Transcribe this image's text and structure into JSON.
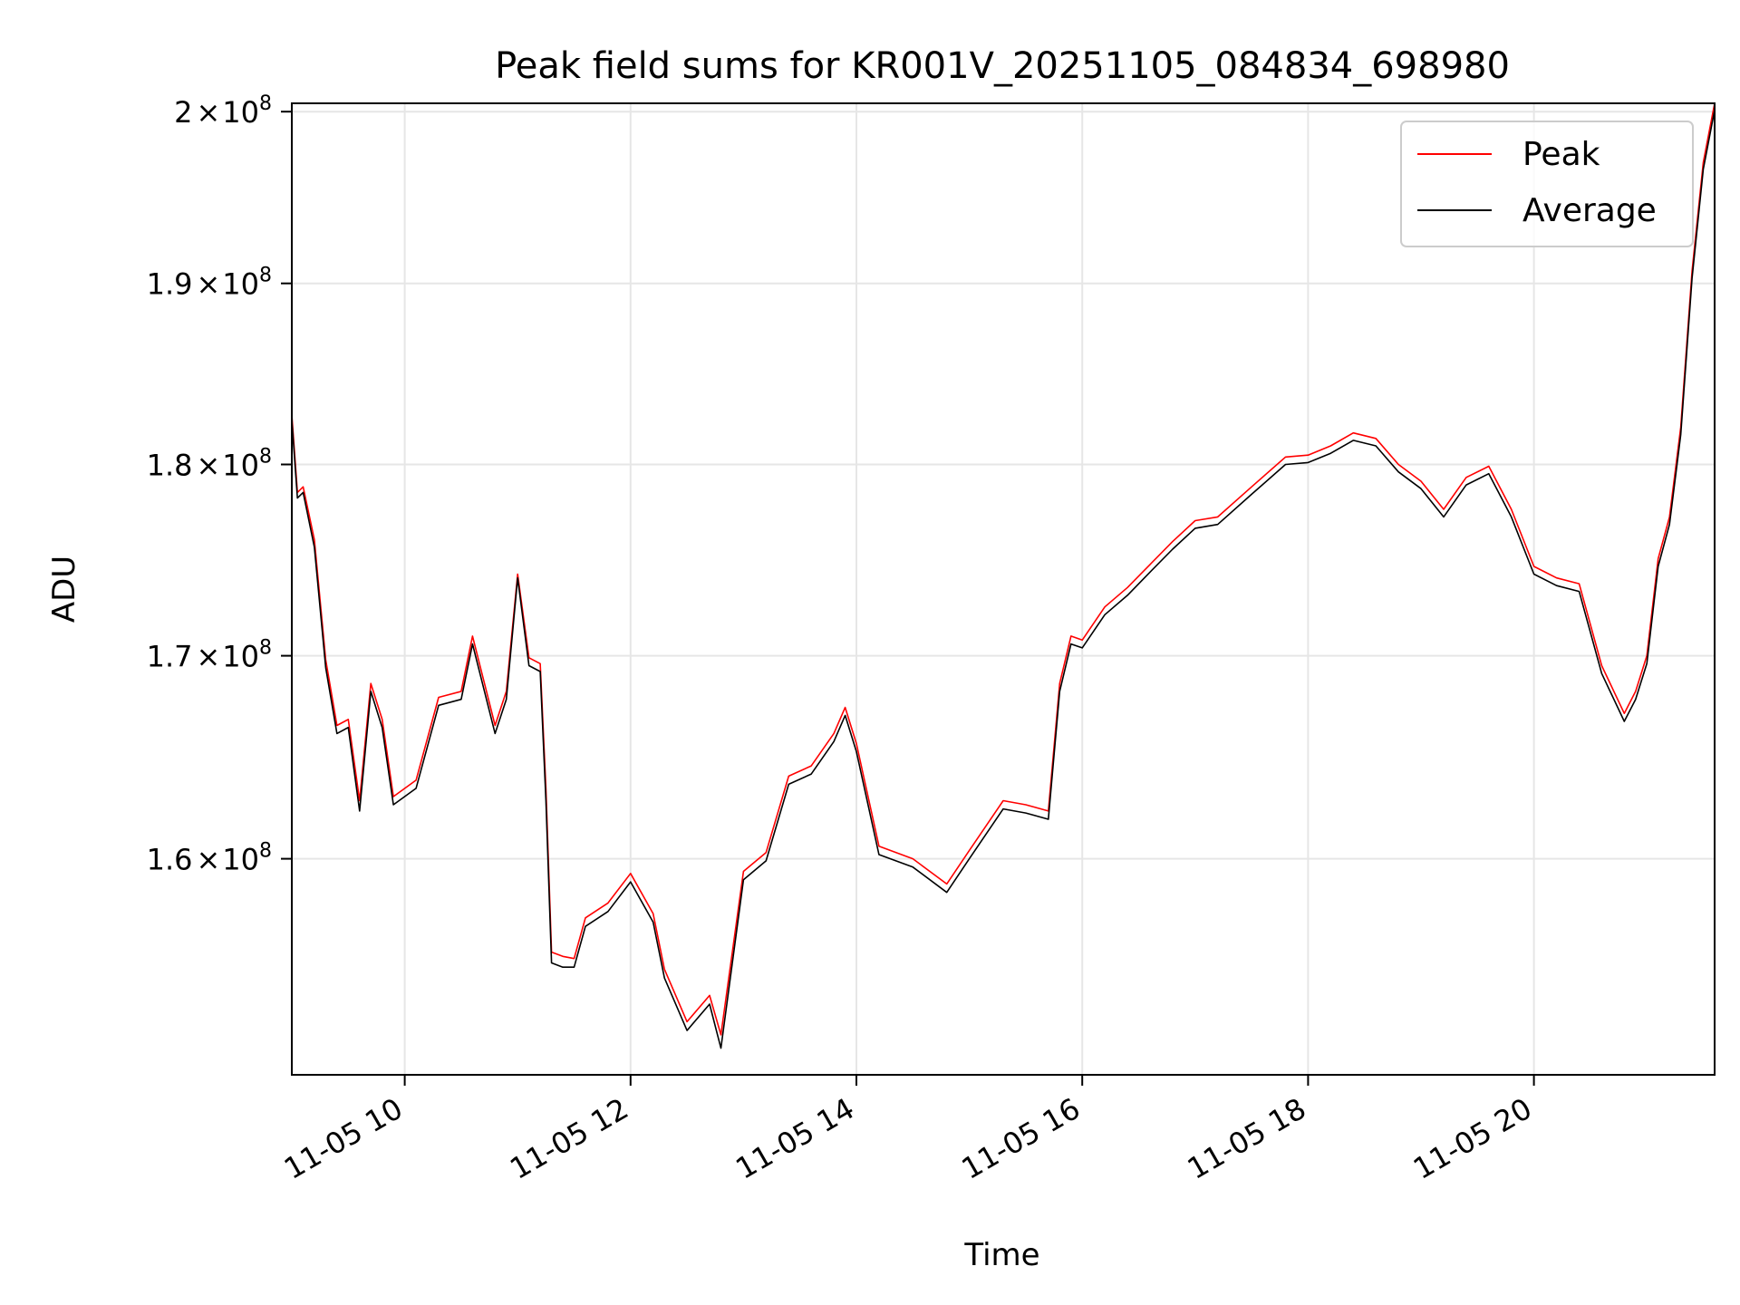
{
  "chart_data": {
    "type": "line",
    "title": "Peak field sums for KR001V_20251105_084834_698980",
    "xlabel": "Time",
    "ylabel": "ADU",
    "x_range": [
      "2025-11-05T09:00",
      "2025-11-05T21:36"
    ],
    "ylim": [
      150000000,
      200500000
    ],
    "y_scale": "log",
    "grid": true,
    "legend_position": "top-right",
    "x_ticks": [
      {
        "x": "2025-11-05T10:00",
        "label": "11-05 10"
      },
      {
        "x": "2025-11-05T12:00",
        "label": "11-05 12"
      },
      {
        "x": "2025-11-05T14:00",
        "label": "11-05 14"
      },
      {
        "x": "2025-11-05T16:00",
        "label": "11-05 16"
      },
      {
        "x": "2025-11-05T18:00",
        "label": "11-05 18"
      },
      {
        "x": "2025-11-05T20:00",
        "label": "11-05 20"
      }
    ],
    "y_ticks": [
      {
        "y": 160000000,
        "mantissa": "1.6",
        "exponent": "8"
      },
      {
        "y": 170000000,
        "mantissa": "1.7",
        "exponent": "8"
      },
      {
        "y": 180000000,
        "mantissa": "1.8",
        "exponent": "8"
      },
      {
        "y": 190000000,
        "mantissa": "1.9",
        "exponent": "8"
      },
      {
        "y": 200000000,
        "mantissa": "2",
        "exponent": "8"
      }
    ],
    "series": [
      {
        "name": "Peak",
        "color": "#ff0000",
        "x": [
          "2025-11-05T09:00",
          "2025-11-05T09:03",
          "2025-11-05T09:06",
          "2025-11-05T09:12",
          "2025-11-05T09:18",
          "2025-11-05T09:24",
          "2025-11-05T09:30",
          "2025-11-05T09:36",
          "2025-11-05T09:42",
          "2025-11-05T09:48",
          "2025-11-05T09:54",
          "2025-11-05T10:06",
          "2025-11-05T10:18",
          "2025-11-05T10:30",
          "2025-11-05T10:36",
          "2025-11-05T10:48",
          "2025-11-05T10:54",
          "2025-11-05T11:00",
          "2025-11-05T11:06",
          "2025-11-05T11:12",
          "2025-11-05T11:15",
          "2025-11-05T11:18",
          "2025-11-05T11:24",
          "2025-11-05T11:30",
          "2025-11-05T11:36",
          "2025-11-05T11:48",
          "2025-11-05T12:00",
          "2025-11-05T12:12",
          "2025-11-05T12:18",
          "2025-11-05T12:30",
          "2025-11-05T12:42",
          "2025-11-05T12:48",
          "2025-11-05T13:00",
          "2025-11-05T13:12",
          "2025-11-05T13:24",
          "2025-11-05T13:36",
          "2025-11-05T13:48",
          "2025-11-05T13:54",
          "2025-11-05T14:00",
          "2025-11-05T14:12",
          "2025-11-05T14:30",
          "2025-11-05T14:48",
          "2025-11-05T15:00",
          "2025-11-05T15:18",
          "2025-11-05T15:30",
          "2025-11-05T15:42",
          "2025-11-05T15:48",
          "2025-11-05T15:54",
          "2025-11-05T16:00",
          "2025-11-05T16:12",
          "2025-11-05T16:24",
          "2025-11-05T16:36",
          "2025-11-05T16:48",
          "2025-11-05T17:00",
          "2025-11-05T17:12",
          "2025-11-05T17:30",
          "2025-11-05T17:48",
          "2025-11-05T18:00",
          "2025-11-05T18:12",
          "2025-11-05T18:24",
          "2025-11-05T18:36",
          "2025-11-05T18:48",
          "2025-11-05T19:00",
          "2025-11-05T19:12",
          "2025-11-05T19:24",
          "2025-11-05T19:36",
          "2025-11-05T19:48",
          "2025-11-05T20:00",
          "2025-11-05T20:12",
          "2025-11-05T20:24",
          "2025-11-05T20:36",
          "2025-11-05T20:48",
          "2025-11-05T20:54",
          "2025-11-05T21:00",
          "2025-11-05T21:06",
          "2025-11-05T21:12",
          "2025-11-05T21:18",
          "2025-11-05T21:24",
          "2025-11-05T21:30",
          "2025-11-05T21:36"
        ],
        "values": [
          182700000,
          178500000,
          178800000,
          176000000,
          169800000,
          166500000,
          166800000,
          162800000,
          168600000,
          166800000,
          163000000,
          163800000,
          167900000,
          168200000,
          171000000,
          166500000,
          168200000,
          174200000,
          169900000,
          169600000,
          163400000,
          155600000,
          155400000,
          155300000,
          157200000,
          157900000,
          159300000,
          157400000,
          154800000,
          152400000,
          153600000,
          151800000,
          159400000,
          160300000,
          164000000,
          164500000,
          166100000,
          167400000,
          165600000,
          160600000,
          160000000,
          158800000,
          160400000,
          162800000,
          162600000,
          162300000,
          168600000,
          171000000,
          170800000,
          172500000,
          173500000,
          174700000,
          175900000,
          177000000,
          177200000,
          178800000,
          180400000,
          180500000,
          181000000,
          181700000,
          181400000,
          180000000,
          179100000,
          177600000,
          179300000,
          179900000,
          177600000,
          174600000,
          174000000,
          173700000,
          169500000,
          167100000,
          168200000,
          170000000,
          175000000,
          177200000,
          182000000,
          190700000,
          197000000,
          200500000
        ]
      },
      {
        "name": "Average",
        "color": "#000000",
        "x": [
          "2025-11-05T09:00",
          "2025-11-05T09:03",
          "2025-11-05T09:06",
          "2025-11-05T09:12",
          "2025-11-05T09:18",
          "2025-11-05T09:24",
          "2025-11-05T09:30",
          "2025-11-05T09:36",
          "2025-11-05T09:42",
          "2025-11-05T09:48",
          "2025-11-05T09:54",
          "2025-11-05T10:06",
          "2025-11-05T10:18",
          "2025-11-05T10:30",
          "2025-11-05T10:36",
          "2025-11-05T10:48",
          "2025-11-05T10:54",
          "2025-11-05T11:00",
          "2025-11-05T11:06",
          "2025-11-05T11:12",
          "2025-11-05T11:15",
          "2025-11-05T11:18",
          "2025-11-05T11:24",
          "2025-11-05T11:30",
          "2025-11-05T11:36",
          "2025-11-05T11:48",
          "2025-11-05T12:00",
          "2025-11-05T12:12",
          "2025-11-05T12:18",
          "2025-11-05T12:30",
          "2025-11-05T12:42",
          "2025-11-05T12:48",
          "2025-11-05T13:00",
          "2025-11-05T13:12",
          "2025-11-05T13:24",
          "2025-11-05T13:36",
          "2025-11-05T13:48",
          "2025-11-05T13:54",
          "2025-11-05T14:00",
          "2025-11-05T14:12",
          "2025-11-05T14:30",
          "2025-11-05T14:48",
          "2025-11-05T15:00",
          "2025-11-05T15:18",
          "2025-11-05T15:30",
          "2025-11-05T15:42",
          "2025-11-05T15:48",
          "2025-11-05T15:54",
          "2025-11-05T16:00",
          "2025-11-05T16:12",
          "2025-11-05T16:24",
          "2025-11-05T16:36",
          "2025-11-05T16:48",
          "2025-11-05T17:00",
          "2025-11-05T17:12",
          "2025-11-05T17:30",
          "2025-11-05T17:48",
          "2025-11-05T18:00",
          "2025-11-05T18:12",
          "2025-11-05T18:24",
          "2025-11-05T18:36",
          "2025-11-05T18:48",
          "2025-11-05T19:00",
          "2025-11-05T19:12",
          "2025-11-05T19:24",
          "2025-11-05T19:36",
          "2025-11-05T19:48",
          "2025-11-05T20:00",
          "2025-11-05T20:12",
          "2025-11-05T20:24",
          "2025-11-05T20:36",
          "2025-11-05T20:48",
          "2025-11-05T20:54",
          "2025-11-05T21:00",
          "2025-11-05T21:06",
          "2025-11-05T21:12",
          "2025-11-05T21:18",
          "2025-11-05T21:24",
          "2025-11-05T21:30",
          "2025-11-05T21:36"
        ],
        "values": [
          182400000,
          178200000,
          178500000,
          175600000,
          169400000,
          166100000,
          166400000,
          162300000,
          168200000,
          166400000,
          162600000,
          163400000,
          167500000,
          167800000,
          170600000,
          166100000,
          167800000,
          174000000,
          169500000,
          169200000,
          162800000,
          155100000,
          154900000,
          154900000,
          156800000,
          157500000,
          158900000,
          157000000,
          154400000,
          152000000,
          153200000,
          151200000,
          159000000,
          159900000,
          163600000,
          164100000,
          165700000,
          167000000,
          165200000,
          160200000,
          159600000,
          158400000,
          160000000,
          162400000,
          162200000,
          161900000,
          168200000,
          170600000,
          170400000,
          172100000,
          173100000,
          174300000,
          175500000,
          176600000,
          176800000,
          178400000,
          180000000,
          180100000,
          180600000,
          181300000,
          181000000,
          179600000,
          178700000,
          177200000,
          178900000,
          179500000,
          177200000,
          174200000,
          173600000,
          173300000,
          169100000,
          166700000,
          167800000,
          169600000,
          174600000,
          176800000,
          181600000,
          190300000,
          196600000,
          200100000
        ]
      }
    ]
  }
}
